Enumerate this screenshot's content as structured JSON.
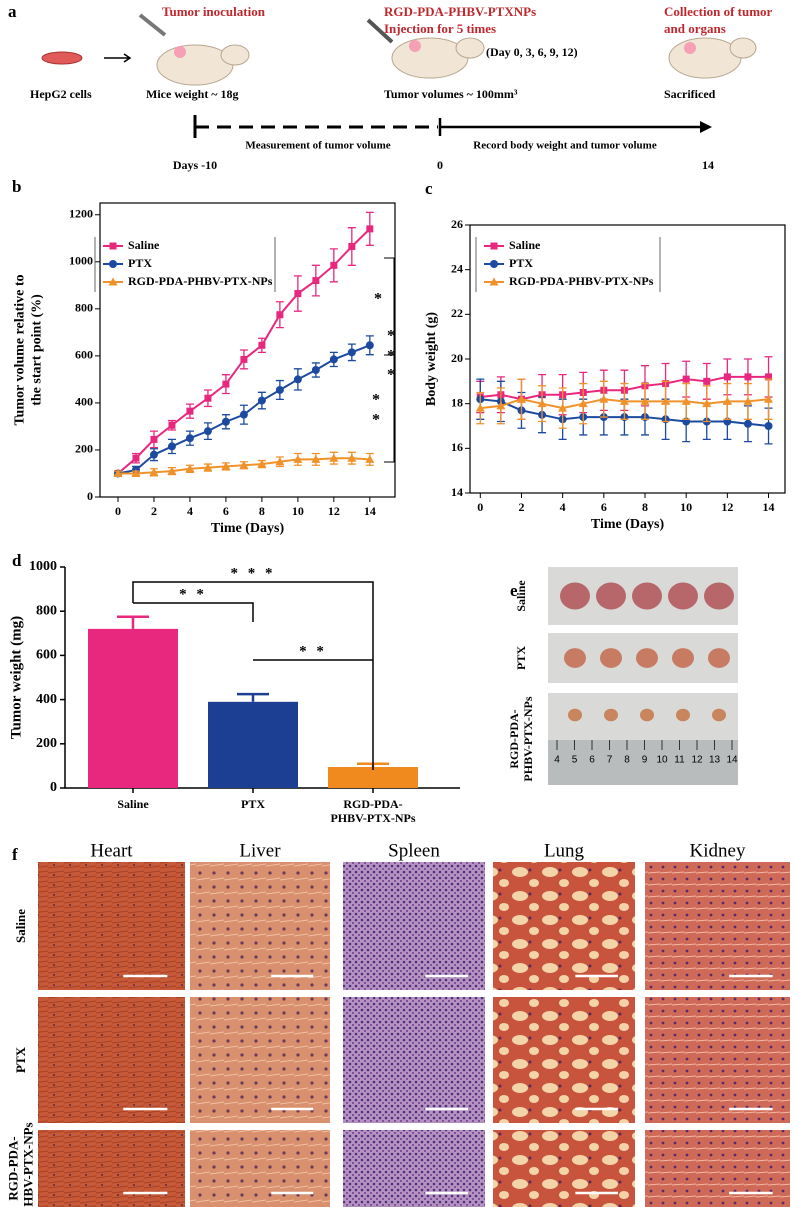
{
  "panel_a": {
    "label": "a",
    "cells": "HepG2 cells",
    "inoculation": "Tumor inoculation",
    "mice_weight": "Mice weight ~ 18g",
    "treatment": [
      "RGD-PDA-PHBV-PTXNPs",
      "Injection for 5 times"
    ],
    "schedule": "(Day 0, 3, 6, 9, 12)",
    "tumor_volume": "Tumor volumes ~ 100mm³",
    "collection": [
      "Collection of tumor",
      "and organs"
    ],
    "sacrificed": "Sacrificed",
    "measurement": "Measurement of tumor volume",
    "record": "Record body weight and tumor volume",
    "timeline": [
      "Days -10",
      "0",
      "14"
    ]
  },
  "chart_data": [
    {
      "label": "b",
      "type": "line",
      "xlabel": "Time (Days)",
      "ylabel": [
        "Tumor volume relative to",
        "the start point (%)"
      ],
      "x": [
        0,
        1,
        2,
        3,
        4,
        5,
        6,
        7,
        8,
        9,
        10,
        11,
        12,
        13,
        14
      ],
      "series": [
        {
          "name": "Saline",
          "color": "#e8287e",
          "marker": "square",
          "values": [
            100,
            165,
            245,
            305,
            365,
            420,
            480,
            585,
            645,
            775,
            865,
            920,
            985,
            1065,
            1140
          ],
          "errors": [
            10,
            20,
            35,
            20,
            30,
            35,
            40,
            40,
            30,
            55,
            75,
            65,
            70,
            80,
            70
          ]
        },
        {
          "name": "PTX",
          "color": "#1c4aa0",
          "marker": "circle",
          "values": [
            100,
            115,
            180,
            215,
            250,
            280,
            320,
            350,
            410,
            455,
            500,
            540,
            585,
            615,
            645
          ],
          "errors": [
            10,
            15,
            25,
            30,
            30,
            35,
            30,
            40,
            35,
            40,
            45,
            30,
            30,
            35,
            40
          ]
        },
        {
          "name": "RGD-PDA-PHBV-PTX-NPs",
          "color": "#f0922a",
          "marker": "triangle",
          "values": [
            100,
            100,
            105,
            110,
            120,
            125,
            130,
            135,
            140,
            150,
            160,
            160,
            165,
            165,
            160
          ],
          "errors": [
            10,
            10,
            15,
            15,
            15,
            15,
            15,
            15,
            15,
            20,
            25,
            25,
            25,
            25,
            25
          ]
        }
      ],
      "xlim": [
        -1,
        15.4
      ],
      "ylim": [
        0,
        1250
      ],
      "xticks": [
        0,
        2,
        4,
        6,
        8,
        10,
        12,
        14
      ],
      "yticks": [
        0,
        200,
        400,
        600,
        800,
        1000,
        1200
      ],
      "legend": "upper left",
      "annotations": [
        "*",
        "*",
        "*",
        "*",
        "*",
        "*"
      ]
    },
    {
      "label": "c",
      "type": "line",
      "xlabel": "Time (Days)",
      "ylabel": [
        "Body weight (g)"
      ],
      "x": [
        0,
        1,
        2,
        3,
        4,
        5,
        6,
        7,
        8,
        9,
        10,
        11,
        12,
        13,
        14
      ],
      "series": [
        {
          "name": "Saline",
          "color": "#e8287e",
          "marker": "square",
          "values": [
            18.3,
            18.4,
            18.2,
            18.4,
            18.4,
            18.5,
            18.6,
            18.6,
            18.8,
            18.9,
            19.1,
            19.0,
            19.2,
            19.2,
            19.2
          ],
          "errors": [
            0.7,
            0.8,
            0.9,
            0.9,
            0.9,
            0.9,
            0.9,
            0.9,
            0.9,
            0.9,
            0.8,
            0.8,
            0.8,
            0.8,
            0.9
          ]
        },
        {
          "name": "PTX",
          "color": "#1c4aa0",
          "marker": "circle",
          "values": [
            18.2,
            18.1,
            17.7,
            17.5,
            17.3,
            17.4,
            17.4,
            17.4,
            17.4,
            17.3,
            17.2,
            17.2,
            17.2,
            17.1,
            17.0
          ],
          "errors": [
            0.9,
            0.9,
            0.8,
            0.8,
            0.9,
            0.8,
            0.8,
            0.8,
            0.8,
            0.9,
            0.9,
            0.8,
            0.8,
            0.8,
            0.8
          ]
        },
        {
          "name": "RGD-PDA-PHBV-PTX-NPs",
          "color": "#f0922a",
          "marker": "triangle",
          "values": [
            17.8,
            17.9,
            18.2,
            18.0,
            17.8,
            18.0,
            18.2,
            18.1,
            18.1,
            18.1,
            18.1,
            18.0,
            18.1,
            18.1,
            18.2
          ],
          "errors": [
            0.7,
            0.8,
            0.9,
            0.8,
            0.9,
            0.9,
            0.8,
            0.8,
            0.8,
            0.9,
            0.8,
            0.8,
            0.8,
            0.8,
            0.9
          ]
        }
      ],
      "xlim": [
        -0.5,
        14.8
      ],
      "ylim": [
        14,
        26
      ],
      "xticks": [
        0,
        2,
        4,
        6,
        8,
        10,
        12,
        14
      ],
      "yticks": [
        14,
        16,
        18,
        20,
        22,
        24,
        26
      ],
      "legend": "upper left"
    },
    {
      "label": "d",
      "type": "bar",
      "ylabel": [
        "Tumor weight (mg)"
      ],
      "categories": [
        "Saline",
        "PTX",
        [
          "RGD-PDA-",
          "PHBV-PTX-NPs"
        ]
      ],
      "values": [
        720,
        390,
        95
      ],
      "errors": [
        55,
        35,
        15
      ],
      "colors": [
        "#e8287e",
        "#1c3f94",
        "#f08a1e"
      ],
      "ylim": [
        0,
        1000
      ],
      "yticks": [
        0,
        200,
        400,
        600,
        800,
        1000
      ],
      "annotations": [
        "* * *",
        "* *",
        "* *"
      ]
    }
  ],
  "panel_e": {
    "label": "e",
    "rows": [
      "Saline",
      "PTX",
      [
        "RGD-PDA-",
        "PHBV-PTX-NPs"
      ]
    ],
    "ruler": [
      4,
      5,
      6,
      7,
      8,
      9,
      10,
      11,
      12,
      13,
      14
    ]
  },
  "panel_f": {
    "label": "f",
    "columns": [
      "Heart",
      "Liver",
      "Spleen",
      "Lung",
      "Kidney"
    ],
    "rows": [
      "Saline",
      "PTX",
      [
        "RGD-PDA-",
        "PHBV-PTX-NPs"
      ]
    ]
  }
}
